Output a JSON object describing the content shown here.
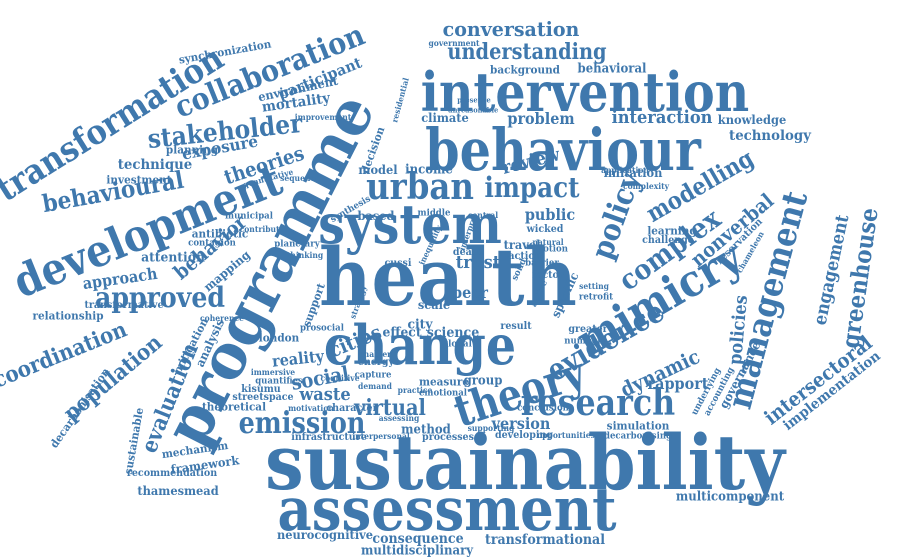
{
  "word_color": "#3f78ad",
  "background": "#ffffff",
  "words": [
    "sustainability",
    "health",
    "programme",
    "assessment",
    "change",
    "behaviour",
    "intervention",
    "system",
    "mimicry",
    "development",
    "urban",
    "theory",
    "management",
    "research",
    "transformation",
    "collaboration",
    "stakeholder",
    "policy",
    "emission",
    "approved",
    "evidence",
    "impact",
    "complex",
    "conversation",
    "understanding",
    "modelling",
    "behavioural",
    "population",
    "coordination",
    "evaluation",
    "engagement",
    "greenhouse",
    "virtual",
    "policies",
    "intersectoral",
    "implementation",
    "dynamic",
    "rapport",
    "theories",
    "technique",
    "exposure",
    "mortality",
    "participant",
    "nonverbal",
    "interaction",
    "knowledge",
    "technology",
    "problem",
    "review",
    "trust",
    "public",
    "cities",
    "social",
    "waste",
    "reality",
    "version",
    "science",
    "approach",
    "behavior",
    "attention",
    "investment",
    "planning",
    "environment",
    "synchronization",
    "improvement",
    "background",
    "behavioral",
    "government",
    "climate",
    "income",
    "decision",
    "model",
    "based",
    "city",
    "peer",
    "scale",
    "support",
    "london",
    "theoretical",
    "infrastructure",
    "method",
    "processes",
    "developing",
    "group",
    "emotional",
    "measure",
    "consequence",
    "multidisciplinary",
    "transformational",
    "neurocognitive",
    "multicomponent",
    "thamesmead",
    "recommendation",
    "framework",
    "mechanism",
    "decarbonisation",
    "relationship",
    "mitigation",
    "analysis",
    "transformative",
    "antibiotic",
    "contagion",
    "mapping",
    "streetspace",
    "kisumu",
    "character",
    "motivation",
    "quantifies",
    "simulation",
    "decarbonising",
    "opportunities",
    "governance",
    "underlying",
    "accounting",
    "learning",
    "challenge",
    "reservation",
    "imitation",
    "application",
    "complexity",
    "effect",
    "prosocial",
    "result",
    "greater",
    "number",
    "specific",
    "active",
    "retrofit",
    "setting",
    "factor",
    "barrier",
    "motion",
    "travel",
    "action",
    "wicked",
    "natural",
    "solid",
    "death",
    "cussi",
    "assessing",
    "coherence",
    "conclusion",
    "global",
    "sustainable",
    "immersive",
    "cognitive",
    "planetary",
    "thinking",
    "synthesis",
    "capture",
    "demand",
    "practice",
    "chameleon",
    "municipal",
    "contribute",
    "quantitative",
    "sequence",
    "interpersonal",
    "supporting",
    "energy",
    "enabler",
    "strategy",
    "middle",
    "central",
    "unreasonable",
    "presence",
    "interpret",
    "residential",
    "inequality"
  ]
}
